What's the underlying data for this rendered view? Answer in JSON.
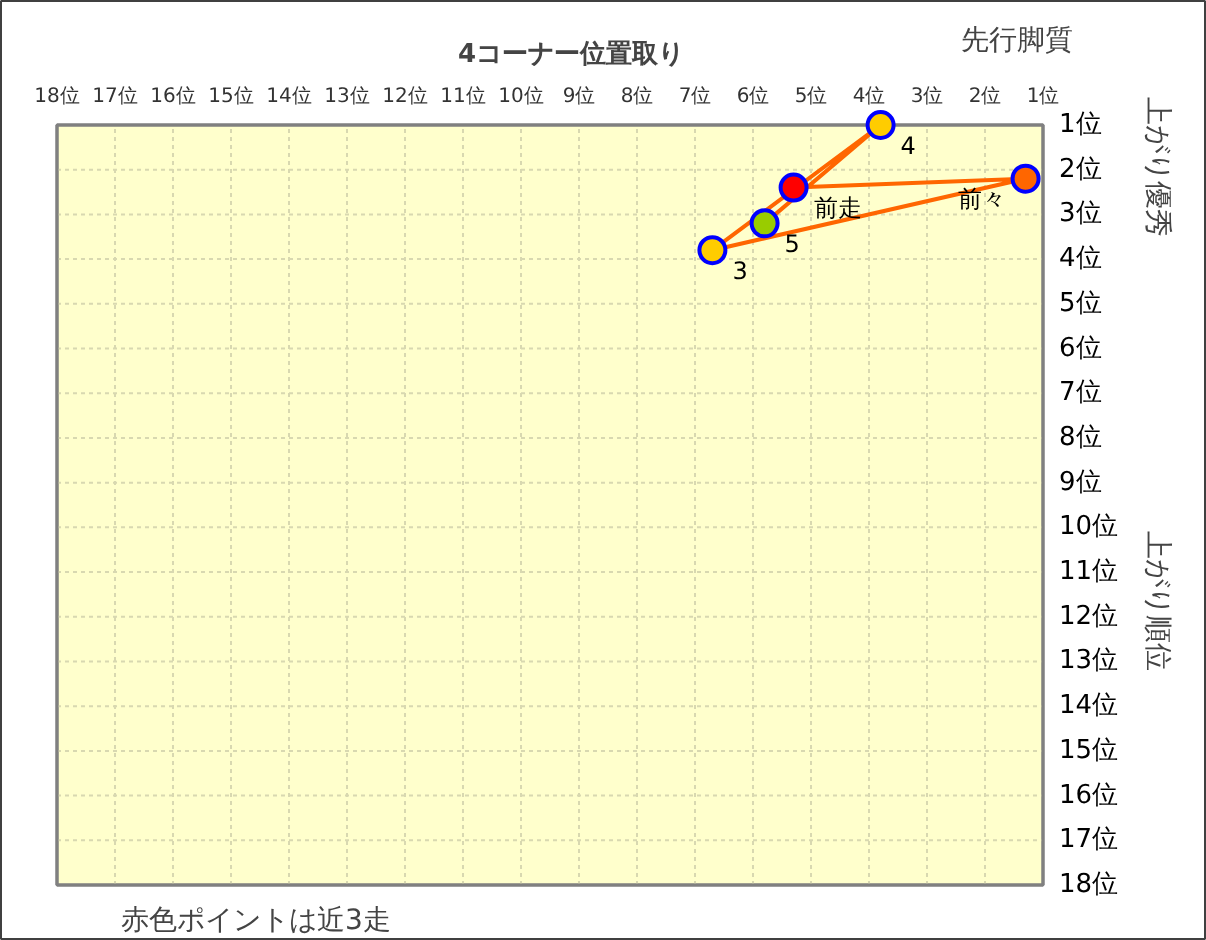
{
  "chart_data": {
    "type": "scatter",
    "title": "4コーナー位置取り",
    "ylabel": "上がり順位",
    "annotations": [
      "先行脚質",
      "上がり優秀",
      "赤色ポイントは近3走"
    ],
    "xlim": [
      18,
      1
    ],
    "ylim": [
      18,
      1
    ],
    "xticks": [
      {
        "value": 18,
        "label": "18位"
      },
      {
        "value": 17,
        "label": "17位"
      },
      {
        "value": 16,
        "label": "16位"
      },
      {
        "value": 15,
        "label": "15位"
      },
      {
        "value": 14,
        "label": "14位"
      },
      {
        "value": 13,
        "label": "13位"
      },
      {
        "value": 12,
        "label": "12位"
      },
      {
        "value": 11,
        "label": "11位"
      },
      {
        "value": 10,
        "label": "10位"
      },
      {
        "value": 9,
        "label": "9位"
      },
      {
        "value": 8,
        "label": "8位"
      },
      {
        "value": 7,
        "label": "7位"
      },
      {
        "value": 6,
        "label": "6位"
      },
      {
        "value": 5,
        "label": "5位"
      },
      {
        "value": 4,
        "label": "4位"
      },
      {
        "value": 3,
        "label": "3位"
      },
      {
        "value": 2,
        "label": "2位"
      },
      {
        "value": 1,
        "label": "1位"
      }
    ],
    "yticks": [
      {
        "value": 1,
        "label": "1位"
      },
      {
        "value": 2,
        "label": "2位"
      },
      {
        "value": 3,
        "label": "3位"
      },
      {
        "value": 4,
        "label": "4位"
      },
      {
        "value": 5,
        "label": "5位"
      },
      {
        "value": 6,
        "label": "6位"
      },
      {
        "value": 7,
        "label": "7位"
      },
      {
        "value": 8,
        "label": "8位"
      },
      {
        "value": 9,
        "label": "9位"
      },
      {
        "value": 10,
        "label": "10位"
      },
      {
        "value": 11,
        "label": "11位"
      },
      {
        "value": 12,
        "label": "12位"
      },
      {
        "value": 13,
        "label": "13位"
      },
      {
        "value": 14,
        "label": "14位"
      },
      {
        "value": 15,
        "label": "15位"
      },
      {
        "value": 16,
        "label": "16位"
      },
      {
        "value": 17,
        "label": "17位"
      },
      {
        "value": 18,
        "label": "18位"
      }
    ],
    "grid": true,
    "marker": "circle",
    "series": [
      {
        "type": "line",
        "marker": "none",
        "color": "#ff6600",
        "x": [
          5.3,
          1.3,
          6.7,
          3.8,
          5.8
        ],
        "values": [
          2.4,
          2.2,
          3.8,
          1.0,
          3.2
        ]
      },
      {
        "name": "前走",
        "color": "#ff0000",
        "x": [
          5.3
        ],
        "values": [
          2.4
        ]
      },
      {
        "name": "前々",
        "color": "#ff6600",
        "x": [
          1.3
        ],
        "values": [
          2.2
        ]
      },
      {
        "name": "3",
        "color": "#ffcc00",
        "x": [
          6.7
        ],
        "values": [
          3.8
        ]
      },
      {
        "name": "4",
        "color": "#ffcc00",
        "x": [
          3.8
        ],
        "values": [
          1.0
        ]
      },
      {
        "name": "5",
        "color": "#99cc00",
        "x": [
          5.8
        ],
        "values": [
          3.2
        ]
      }
    ]
  }
}
